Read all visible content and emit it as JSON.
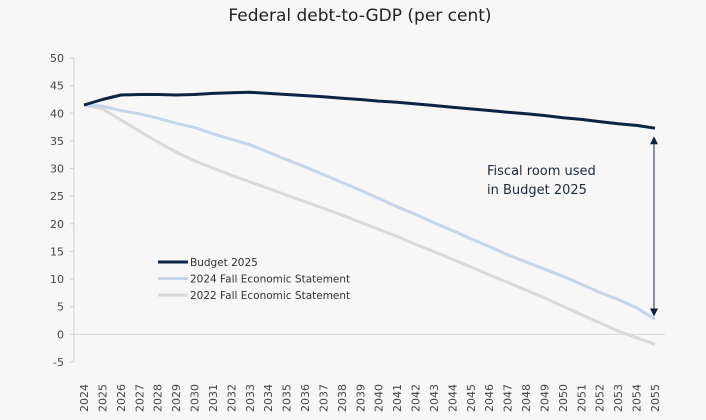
{
  "chart_data": {
    "type": "line",
    "title": "Federal debt-to-GDP (per cent)",
    "xlabel": "",
    "ylabel": "",
    "ylim": [
      -5,
      50
    ],
    "yticks": [
      -5,
      0,
      5,
      10,
      15,
      20,
      25,
      30,
      35,
      40,
      45,
      50
    ],
    "x": [
      2024,
      2025,
      2026,
      2027,
      2028,
      2029,
      2030,
      2031,
      2032,
      2033,
      2034,
      2035,
      2036,
      2037,
      2038,
      2039,
      2040,
      2041,
      2042,
      2043,
      2044,
      2045,
      2046,
      2047,
      2048,
      2049,
      2050,
      2051,
      2052,
      2053,
      2054,
      2055
    ],
    "grid": false,
    "legend_position": "lower-left",
    "series": [
      {
        "name": "Budget 2025",
        "color": "#0b2545",
        "values": [
          41.5,
          42.5,
          43.3,
          43.4,
          43.4,
          43.3,
          43.4,
          43.6,
          43.7,
          43.8,
          43.6,
          43.4,
          43.2,
          43.0,
          42.7,
          42.5,
          42.2,
          42.0,
          41.7,
          41.4,
          41.1,
          40.8,
          40.5,
          40.2,
          39.9,
          39.6,
          39.2,
          38.9,
          38.5,
          38.1,
          37.8,
          37.3
        ]
      },
      {
        "name": "2024 Fall Economic Statement",
        "color": "#c5d6ec",
        "values": [
          41.5,
          41.3,
          40.5,
          39.9,
          39.1,
          38.2,
          37.4,
          36.3,
          35.3,
          34.3,
          33.0,
          31.6,
          30.3,
          28.9,
          27.5,
          26.1,
          24.6,
          23.1,
          21.7,
          20.2,
          18.8,
          17.3,
          15.9,
          14.4,
          13.1,
          11.8,
          10.5,
          9.1,
          7.6,
          6.3,
          4.8,
          2.7
        ]
      },
      {
        "name": "2022 Fall Economic Statement",
        "color": "#d9d9d9",
        "values": [
          41.5,
          40.8,
          38.8,
          36.8,
          34.8,
          33.0,
          31.4,
          30.1,
          28.8,
          27.6,
          26.4,
          25.2,
          24.0,
          22.8,
          21.6,
          20.3,
          19.0,
          17.7,
          16.3,
          15.0,
          13.6,
          12.2,
          10.8,
          9.4,
          8.0,
          6.6,
          5.1,
          3.6,
          2.1,
          0.6,
          -0.6,
          -1.8
        ]
      }
    ],
    "annotations": [
      {
        "text_lines": [
          "Fiscal room used",
          "in Budget 2025"
        ],
        "type": "double-arrow",
        "x": 2055,
        "from_series": "Budget 2025",
        "to_series": "2024 Fall Economic Statement"
      }
    ]
  }
}
